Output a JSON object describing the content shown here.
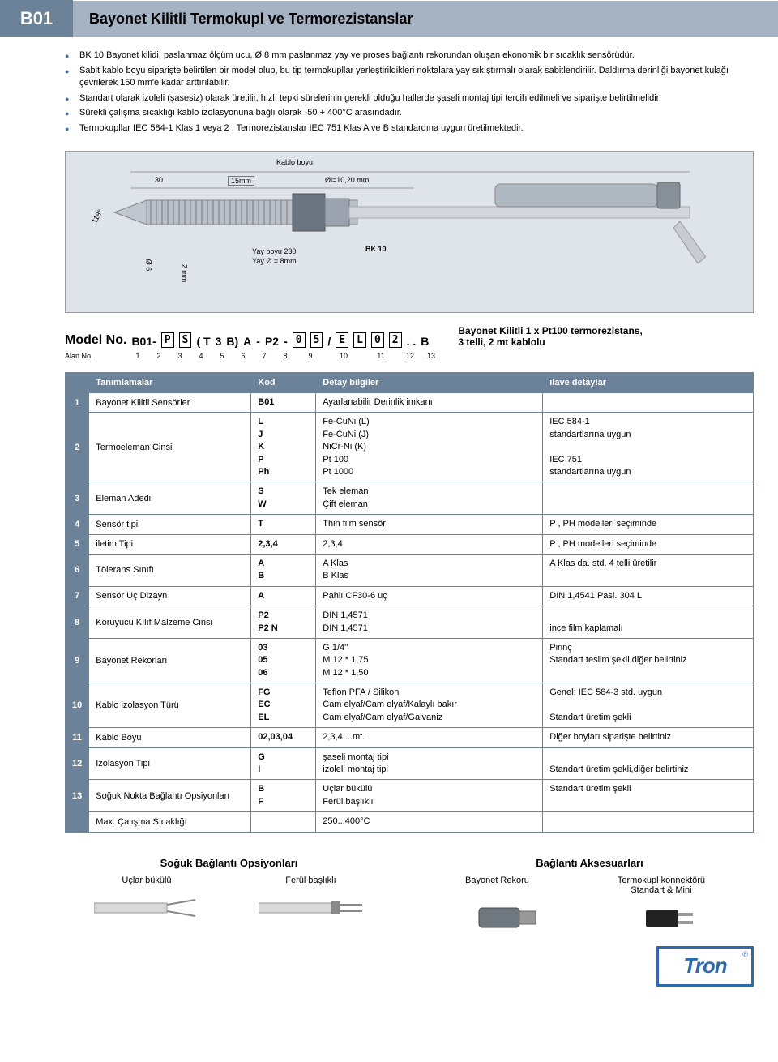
{
  "header": {
    "code": "B01",
    "title": "Bayonet Kilitli Termokupl ve Termorezistanslar"
  },
  "bullets": [
    "BK 10 Bayonet kilidi, paslanmaz ölçüm ucu, Ø 8 mm paslanmaz yay ve proses bağlantı rekorundan oluşan ekonomik bir sıcaklık sensörüdür.",
    "Sabit kablo boyu siparişte belirtilen bir model olup, bu tip termokupllar yerleştirildikleri noktalara yay sıkıştırmalı olarak sabitlendirilir. Daldırma derinliği bayonet kulağı çevrilerek 150 mm'e kadar arttırılabilir.",
    "Standart olarak izoleli (şasesiz) olarak üretilir, hızlı tepki sürelerinin gerekli olduğu hallerde şaseli montaj tipi tercih edilmeli ve siparişte belirtilmelidir.",
    "Sürekli çalışma sıcaklığı kablo izolasyonuna bağlı olarak -50 + 400°C arasındadır.",
    "Termokupllar IEC 584-1 Klas 1 veya 2 , Termorezistanslar IEC 751 Klas A ve B standardına uygun üretilmektedir."
  ],
  "diagram": {
    "kablo_boyu": "Kablo boyu",
    "dim_30": "30",
    "dim_15mm": "15mm",
    "dim_oi": "Øi=10,20 mm",
    "dim_118": "118°",
    "dim_o6": "Ø 6",
    "dim_2mm": "2 mm",
    "yay_boyu": "Yay boyu 230",
    "yay_o": "Yay Ø = 8mm",
    "bk10": "BK 10"
  },
  "model": {
    "label": "Model No.",
    "prefix": "B01-",
    "p2": "P",
    "p3": "S",
    "paren_open": "( T",
    "p5": "3",
    "p6": "B)",
    "p7": "A",
    "dash1": "-",
    "p8": "P2",
    "dash2": "-",
    "p9a": "0",
    "p9b": "5",
    "slash": "/",
    "p10a": "E",
    "p10b": "L",
    "p11a": "0",
    "p11b": "2",
    "dots": ". .",
    "p13": "B",
    "desc1": "Bayonet Kilitli 1 x Pt100 termorezistans,",
    "desc2": "3 telli, 2 mt kablolu",
    "alan_label": "Alan No.",
    "alan_nums": [
      "1",
      "2",
      "3",
      "4",
      "5",
      "6",
      "7",
      "8",
      "9",
      "10",
      "11",
      "12",
      "13"
    ]
  },
  "table": {
    "h1": "Tanımlamalar",
    "h2": "Kod",
    "h3": "Detay bilgiler",
    "h4": "ilave detaylar",
    "rows": [
      {
        "n": "1",
        "name": "Bayonet Kilitli Sensörler",
        "code": "B01",
        "detail": "Ayarlanabilir Derinlik imkanı",
        "extra": ""
      },
      {
        "n": "2",
        "name": "Termoeleman Cinsi",
        "code": "L\nJ\nK\nP\nPh",
        "detail": "Fe-CuNi (L)\nFe-CuNi (J)\nNiCr-Ni (K)\nPt 100\nPt 1000",
        "extra": "IEC 584-1\nstandartlarına uygun\n\nIEC 751\nstandartlarına uygun"
      },
      {
        "n": "3",
        "name": "Eleman Adedi",
        "code": "S\nW",
        "detail": "Tek eleman\nÇift eleman",
        "extra": ""
      },
      {
        "n": "4",
        "name": "Sensör tipi",
        "code": "T",
        "detail": "Thin film sensör",
        "extra": "P , PH modelleri seçiminde"
      },
      {
        "n": "5",
        "name": "iletim Tipi",
        "code": "2,3,4",
        "detail": "2,3,4",
        "extra": "P , PH modelleri seçiminde"
      },
      {
        "n": "6",
        "name": "Tölerans Sınıfı",
        "code": "A\nB",
        "detail": "A Klas\nB Klas",
        "extra": "A Klas da. std. 4 telli üretilir"
      },
      {
        "n": "7",
        "name": "Sensör Uç Dizayn",
        "code": "A",
        "detail": "Pahlı CF30-6 uç",
        "extra": "DIN 1,4541 Pasl. 304 L"
      },
      {
        "n": "8",
        "name": "Koruyucu Kılıf Malzeme Cinsi",
        "code": "P2\nP2 N",
        "detail": "DIN 1,4571\nDIN 1,4571",
        "extra": "\nince film kaplamalı"
      },
      {
        "n": "9",
        "name": "Bayonet Rekorları",
        "code": "03\n05\n06",
        "detail": "G 1/4''\nM 12 * 1,75\nM 12 * 1,50",
        "extra": "Pirinç\nStandart teslim şekli,diğer belirtiniz"
      },
      {
        "n": "10",
        "name": "Kablo izolasyon Türü",
        "code": "FG\nEC\nEL",
        "detail": "Teflon PFA / Silikon\nCam elyaf/Cam elyaf/Kalaylı bakır\nCam elyaf/Cam elyaf/Galvaniz",
        "extra": "Genel: IEC 584-3 std. uygun\n\nStandart üretim şekli"
      },
      {
        "n": "11",
        "name": "Kablo Boyu",
        "code": "02,03,04",
        "detail": "2,3,4....mt.",
        "extra": "Diğer boyları siparişte belirtiniz"
      },
      {
        "n": "12",
        "name": "Izolasyon Tipi",
        "code": "G\nI",
        "detail": "şaseli montaj tipi\nizoleli montaj tipi",
        "extra": "\nStandart üretim şekli,diğer belirtiniz"
      },
      {
        "n": "13",
        "name": "Soğuk Nokta Bağlantı Opsiyonları",
        "code": "B\nF",
        "detail": "Uçlar bükülü\nFerül başlıklı",
        "extra": "Standart üretim şekli"
      },
      {
        "n": "",
        "name": "Max. Çalışma Sıcaklığı",
        "code": "",
        "detail": "250...400°C",
        "extra": ""
      }
    ]
  },
  "bottom": {
    "left_title": "Soğuk Bağlantı Opsiyonları",
    "left_sub1": "Uçlar bükülü",
    "left_sub2": "Ferül başlıklı",
    "right_title": "Bağlantı Aksesuarları",
    "right_sub1": "Bayonet Rekoru",
    "right_sub2": "Termokupl konnektörü Standart & Mini"
  },
  "logo": "Tron",
  "colors": {
    "header_dark": "#6b8299",
    "header_light": "#a6b3c2",
    "bullet": "#3b75b3",
    "logo": "#2a6bb0",
    "diagram_bg": "#dfe4eb"
  }
}
